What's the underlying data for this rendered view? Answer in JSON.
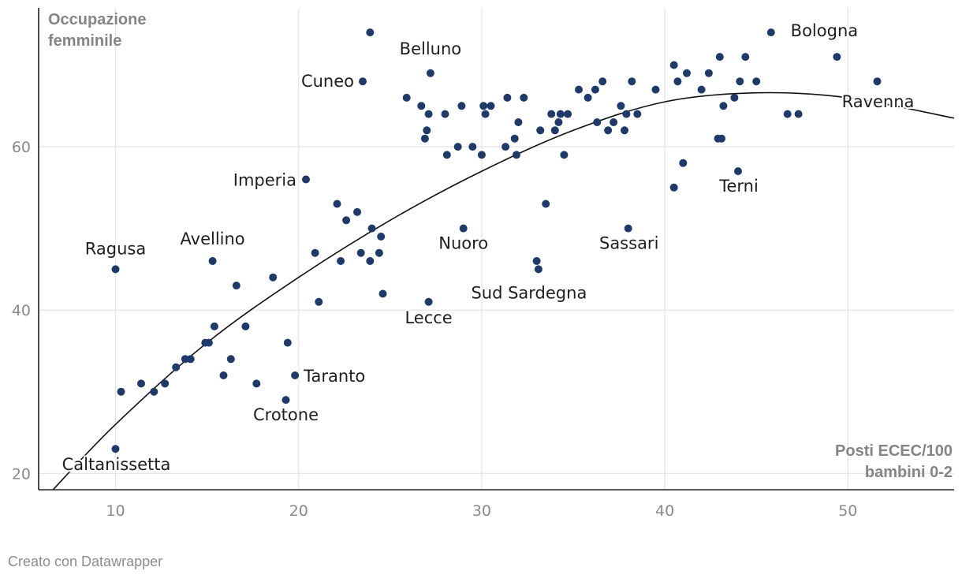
{
  "chart_data": {
    "type": "scatter",
    "title": "",
    "ylabel": [
      "Occupazione",
      "femminile"
    ],
    "xlabel": [
      "Posti ECEC/100",
      "bambini 0-2"
    ],
    "xlim": [
      5.8,
      55.8
    ],
    "ylim": [
      18,
      77
    ],
    "x_ticks": [
      10,
      20,
      30,
      40,
      50
    ],
    "y_ticks": [
      20,
      40,
      60
    ],
    "grid": true,
    "colors": {
      "point": "#1d3a6b",
      "trend": "#111111"
    },
    "trend": {
      "type": "quadratic",
      "points": [
        [
          6.5,
          17.8
        ],
        [
          10,
          26
        ],
        [
          15,
          36
        ],
        [
          20,
          44
        ],
        [
          25,
          51
        ],
        [
          30,
          57
        ],
        [
          35,
          62
        ],
        [
          40,
          65.5
        ],
        [
          45,
          66.6
        ],
        [
          50,
          66
        ],
        [
          55.8,
          63.5
        ]
      ]
    },
    "points": [
      {
        "x": 10.0,
        "y": 45,
        "label": "Ragusa"
      },
      {
        "x": 10.0,
        "y": 23,
        "label": "Caltanissetta"
      },
      {
        "x": 10.3,
        "y": 30
      },
      {
        "x": 11.4,
        "y": 31
      },
      {
        "x": 12.1,
        "y": 30
      },
      {
        "x": 12.7,
        "y": 31
      },
      {
        "x": 13.3,
        "y": 33
      },
      {
        "x": 13.8,
        "y": 34
      },
      {
        "x": 14.1,
        "y": 34
      },
      {
        "x": 14.9,
        "y": 36
      },
      {
        "x": 15.1,
        "y": 36
      },
      {
        "x": 15.3,
        "y": 46,
        "label": "Avellino"
      },
      {
        "x": 15.4,
        "y": 38
      },
      {
        "x": 15.9,
        "y": 32
      },
      {
        "x": 16.3,
        "y": 34
      },
      {
        "x": 16.6,
        "y": 43
      },
      {
        "x": 17.1,
        "y": 38
      },
      {
        "x": 17.7,
        "y": 31
      },
      {
        "x": 18.6,
        "y": 44
      },
      {
        "x": 19.3,
        "y": 29,
        "label": "Crotone"
      },
      {
        "x": 19.4,
        "y": 36
      },
      {
        "x": 19.8,
        "y": 32,
        "label": "Taranto"
      },
      {
        "x": 20.4,
        "y": 56,
        "label": "Imperia"
      },
      {
        "x": 20.9,
        "y": 47
      },
      {
        "x": 21.1,
        "y": 41
      },
      {
        "x": 22.1,
        "y": 53
      },
      {
        "x": 22.3,
        "y": 46
      },
      {
        "x": 22.6,
        "y": 51
      },
      {
        "x": 23.2,
        "y": 52
      },
      {
        "x": 23.4,
        "y": 47
      },
      {
        "x": 23.5,
        "y": 68,
        "label": "Cuneo"
      },
      {
        "x": 23.9,
        "y": 74
      },
      {
        "x": 23.9,
        "y": 46
      },
      {
        "x": 24.0,
        "y": 50
      },
      {
        "x": 24.4,
        "y": 47
      },
      {
        "x": 24.5,
        "y": 49
      },
      {
        "x": 24.6,
        "y": 42
      },
      {
        "x": 25.9,
        "y": 66
      },
      {
        "x": 26.7,
        "y": 65
      },
      {
        "x": 26.9,
        "y": 61
      },
      {
        "x": 27.0,
        "y": 62
      },
      {
        "x": 27.1,
        "y": 64
      },
      {
        "x": 27.1,
        "y": 41,
        "label": "Lecce"
      },
      {
        "x": 27.2,
        "y": 69,
        "label": "Belluno"
      },
      {
        "x": 28.0,
        "y": 64
      },
      {
        "x": 28.1,
        "y": 59
      },
      {
        "x": 28.7,
        "y": 60
      },
      {
        "x": 28.9,
        "y": 65
      },
      {
        "x": 29.0,
        "y": 50,
        "label": "Nuoro"
      },
      {
        "x": 29.5,
        "y": 60
      },
      {
        "x": 30.0,
        "y": 59
      },
      {
        "x": 30.1,
        "y": 65
      },
      {
        "x": 30.2,
        "y": 64
      },
      {
        "x": 30.5,
        "y": 65
      },
      {
        "x": 31.3,
        "y": 60
      },
      {
        "x": 31.4,
        "y": 66
      },
      {
        "x": 31.8,
        "y": 61
      },
      {
        "x": 31.9,
        "y": 59
      },
      {
        "x": 32.0,
        "y": 63
      },
      {
        "x": 32.3,
        "y": 66
      },
      {
        "x": 33.0,
        "y": 46
      },
      {
        "x": 33.1,
        "y": 45,
        "label": "Sud Sardegna"
      },
      {
        "x": 33.2,
        "y": 62
      },
      {
        "x": 33.5,
        "y": 53
      },
      {
        "x": 33.8,
        "y": 64
      },
      {
        "x": 34.0,
        "y": 62
      },
      {
        "x": 34.2,
        "y": 63
      },
      {
        "x": 34.3,
        "y": 64
      },
      {
        "x": 34.5,
        "y": 59
      },
      {
        "x": 34.7,
        "y": 64
      },
      {
        "x": 35.3,
        "y": 67
      },
      {
        "x": 35.8,
        "y": 66
      },
      {
        "x": 36.2,
        "y": 67
      },
      {
        "x": 36.3,
        "y": 63
      },
      {
        "x": 36.6,
        "y": 68
      },
      {
        "x": 36.9,
        "y": 62
      },
      {
        "x": 37.2,
        "y": 63
      },
      {
        "x": 37.6,
        "y": 65
      },
      {
        "x": 37.8,
        "y": 62
      },
      {
        "x": 37.9,
        "y": 64
      },
      {
        "x": 38.0,
        "y": 50,
        "label": "Sassari"
      },
      {
        "x": 38.2,
        "y": 68
      },
      {
        "x": 38.5,
        "y": 64
      },
      {
        "x": 39.5,
        "y": 67
      },
      {
        "x": 40.5,
        "y": 70
      },
      {
        "x": 40.5,
        "y": 55
      },
      {
        "x": 40.7,
        "y": 68
      },
      {
        "x": 41.0,
        "y": 58
      },
      {
        "x": 41.2,
        "y": 69
      },
      {
        "x": 42.0,
        "y": 67
      },
      {
        "x": 42.4,
        "y": 69
      },
      {
        "x": 42.9,
        "y": 61
      },
      {
        "x": 43.0,
        "y": 71
      },
      {
        "x": 43.1,
        "y": 61
      },
      {
        "x": 43.2,
        "y": 65
      },
      {
        "x": 43.8,
        "y": 66
      },
      {
        "x": 44.0,
        "y": 57,
        "label": "Terni"
      },
      {
        "x": 44.1,
        "y": 68
      },
      {
        "x": 44.4,
        "y": 71
      },
      {
        "x": 45.0,
        "y": 68
      },
      {
        "x": 45.8,
        "y": 74
      },
      {
        "x": 46.7,
        "y": 64
      },
      {
        "x": 47.3,
        "y": 64
      },
      {
        "x": 49.4,
        "y": 71,
        "label": "Bologna"
      },
      {
        "x": 51.6,
        "y": 68,
        "label": "Ravenna"
      }
    ]
  },
  "footer": {
    "credit": "Creato con Datawrapper"
  }
}
